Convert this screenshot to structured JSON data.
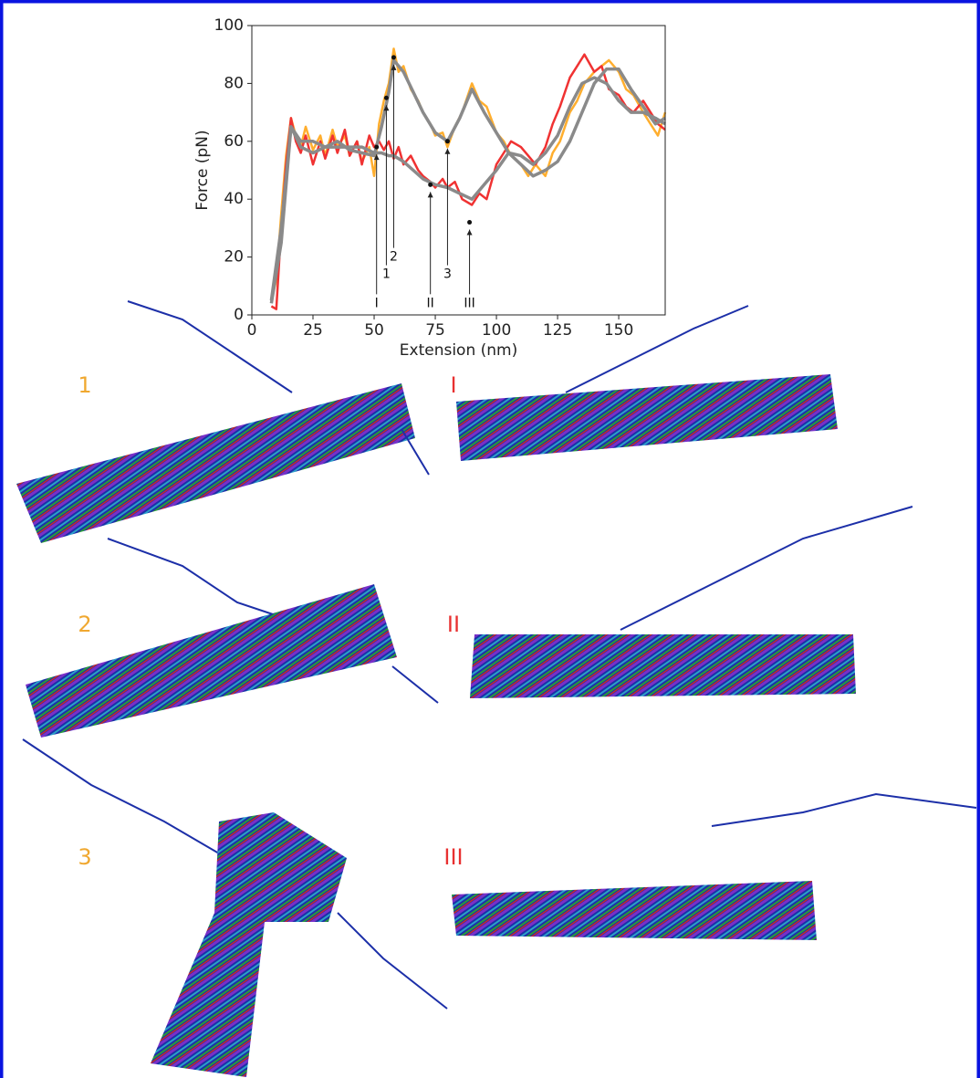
{
  "chart_data": {
    "type": "line",
    "xlabel": "Extension (nm)",
    "ylabel": "Force (pN)",
    "xlim": [
      0,
      169
    ],
    "ylim": [
      0,
      100
    ],
    "xticks": [
      0,
      25,
      50,
      75,
      100,
      125,
      150
    ],
    "yticks": [
      0,
      20,
      40,
      60,
      80,
      100
    ],
    "series": [
      {
        "color": "#ffae2e",
        "x": [
          8,
          10,
          12,
          14,
          16,
          18,
          20,
          22,
          25,
          28,
          30,
          33,
          35,
          38,
          40,
          43,
          45,
          48,
          50,
          52,
          54,
          56,
          58,
          60,
          62,
          65,
          68,
          70,
          73,
          75,
          78,
          80,
          83,
          86,
          90,
          93,
          96,
          100,
          103,
          106,
          110,
          113,
          116,
          120,
          123,
          126,
          130,
          133,
          136,
          140,
          143,
          146,
          150,
          153,
          156,
          160,
          163,
          166,
          169
        ],
        "values": [
          5,
          12,
          35,
          55,
          68,
          62,
          58,
          65,
          57,
          62,
          55,
          64,
          58,
          62,
          55,
          60,
          53,
          58,
          48,
          66,
          74,
          80,
          92,
          84,
          86,
          78,
          74,
          70,
          66,
          62,
          63,
          58,
          65,
          70,
          80,
          74,
          72,
          63,
          60,
          55,
          52,
          48,
          52,
          48,
          56,
          60,
          70,
          74,
          80,
          84,
          86,
          88,
          84,
          78,
          76,
          70,
          66,
          62,
          70
        ]
      },
      {
        "color": "#f03232",
        "x": [
          8,
          10,
          12,
          14,
          16,
          18,
          20,
          22,
          25,
          28,
          30,
          33,
          35,
          38,
          40,
          43,
          45,
          48,
          50,
          52,
          54,
          56,
          58,
          60,
          62,
          65,
          68,
          70,
          73,
          75,
          78,
          80,
          83,
          86,
          90,
          93,
          96,
          100,
          103,
          106,
          110,
          113,
          116,
          120,
          123,
          126,
          130,
          133,
          136,
          140,
          143,
          146,
          150,
          153,
          156,
          160,
          163,
          166,
          169
        ],
        "values": [
          3,
          2,
          30,
          52,
          68,
          60,
          56,
          62,
          52,
          60,
          54,
          62,
          56,
          64,
          55,
          60,
          52,
          62,
          58,
          60,
          57,
          60,
          54,
          58,
          52,
          55,
          50,
          48,
          46,
          44,
          47,
          44,
          46,
          40,
          38,
          42,
          40,
          52,
          56,
          60,
          58,
          55,
          52,
          58,
          66,
          72,
          82,
          86,
          90,
          84,
          86,
          78,
          76,
          72,
          70,
          74,
          70,
          66,
          64
        ]
      },
      {
        "color": "#8a8a8a",
        "x": [
          8,
          12,
          16,
          20,
          25,
          30,
          35,
          40,
          45,
          50,
          53,
          56,
          58,
          62,
          66,
          70,
          75,
          80,
          85,
          90,
          95,
          100,
          105,
          110,
          115,
          120,
          125,
          130,
          135,
          140,
          145,
          150,
          155,
          160,
          165,
          169
        ],
        "values": [
          5,
          30,
          65,
          60,
          60,
          58,
          60,
          57,
          56,
          55,
          65,
          77,
          88,
          84,
          77,
          70,
          63,
          60,
          68,
          78,
          70,
          63,
          56,
          52,
          48,
          50,
          53,
          60,
          70,
          80,
          85,
          85,
          78,
          72,
          66,
          68
        ]
      },
      {
        "color": "#8a8a8a",
        "x": [
          8,
          12,
          16,
          20,
          25,
          30,
          35,
          40,
          45,
          50,
          53,
          56,
          58,
          62,
          66,
          70,
          75,
          80,
          85,
          90,
          95,
          100,
          105,
          110,
          115,
          120,
          125,
          130,
          135,
          140,
          145,
          150,
          155,
          160,
          165,
          169
        ],
        "values": [
          4,
          25,
          65,
          58,
          56,
          58,
          58,
          58,
          58,
          56,
          56,
          55,
          55,
          53,
          50,
          47,
          45,
          44,
          42,
          40,
          45,
          50,
          56,
          55,
          52,
          56,
          62,
          72,
          80,
          82,
          80,
          74,
          70,
          70,
          68,
          66
        ]
      }
    ],
    "annotations": [
      {
        "text": "I",
        "x": 51,
        "y": 58,
        "label_y": 4
      },
      {
        "text": "1",
        "x": 55,
        "y": 75,
        "label_y": 14
      },
      {
        "text": "2",
        "x": 58,
        "y": 89,
        "label_y": 20
      },
      {
        "text": "II",
        "x": 73,
        "y": 45,
        "label_y": 4
      },
      {
        "text": "3",
        "x": 80,
        "y": 60,
        "label_y": 14
      },
      {
        "text": "III",
        "x": 89,
        "y": 32,
        "label_y": 4
      }
    ]
  },
  "panels": [
    {
      "label": "1",
      "color": "#f0a830"
    },
    {
      "label": "I",
      "color": "#e83030"
    },
    {
      "label": "2",
      "color": "#f0a830"
    },
    {
      "label": "II",
      "color": "#e83030"
    },
    {
      "label": "3",
      "color": "#f0a830"
    },
    {
      "label": "III",
      "color": "#e83030"
    }
  ]
}
